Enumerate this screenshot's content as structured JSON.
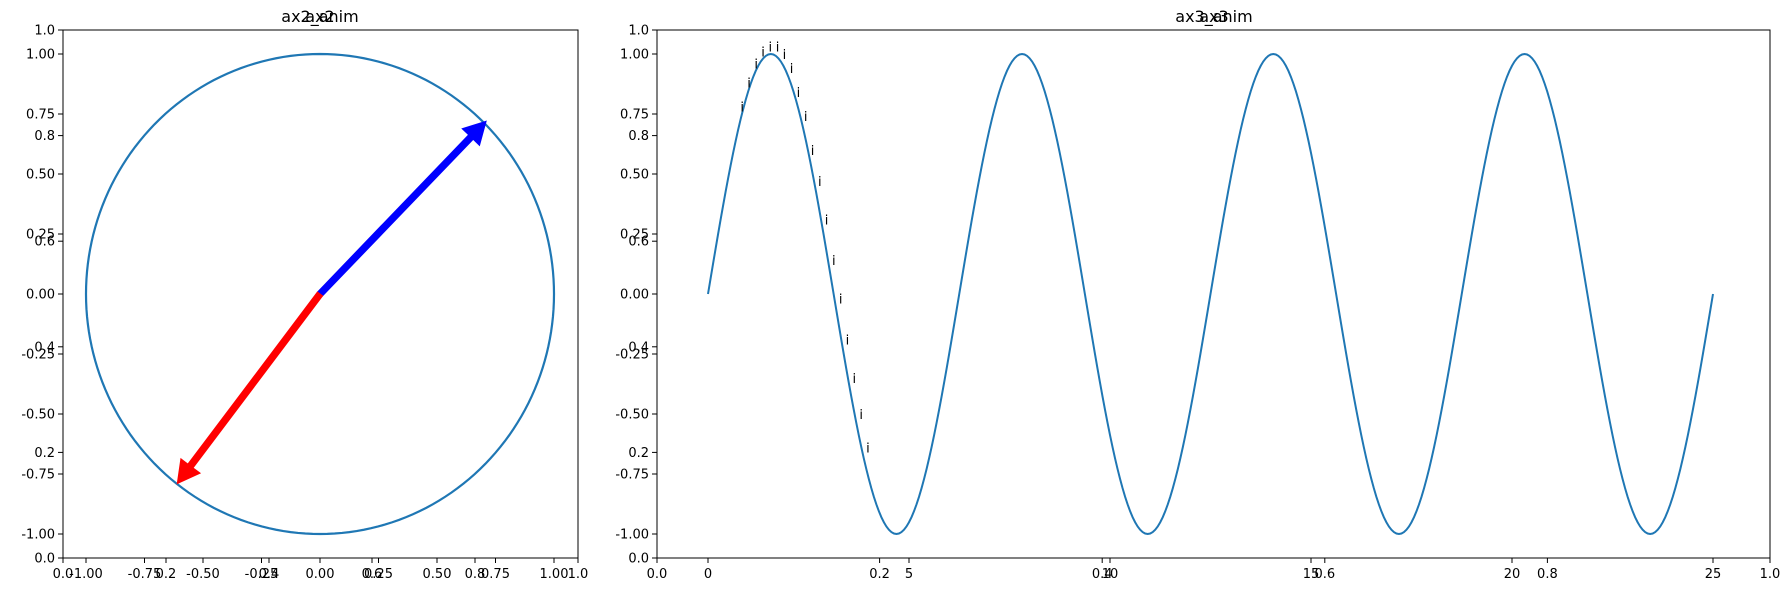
{
  "colors": {
    "line": "#1f77b4",
    "arrow_blue": "#0000ff",
    "arrow_red": "#ff0000",
    "axis": "#000000",
    "background": "#ffffff"
  },
  "chart_data": [
    {
      "type": "line",
      "panel": "left",
      "title": "ax2_anim",
      "overlay_title": "ax2",
      "xlim": [
        -1.0,
        1.0
      ],
      "ylim": [
        -1.0,
        1.0
      ],
      "xticks": [
        "-1.00",
        "-0.75",
        "-0.50",
        "-0.25",
        "0.00",
        "0.25",
        "0.50",
        "0.75",
        "1.00"
      ],
      "yticks": [
        "-1.00",
        "-0.75",
        "-0.50",
        "-0.25",
        "0.00",
        "0.25",
        "0.50",
        "0.75",
        "1.00"
      ],
      "overlay_xticks": [
        "0.0",
        "0.2",
        "0.4",
        "0.6",
        "0.8",
        "1.0"
      ],
      "overlay_yticks": [
        "0.0",
        "0.2",
        "0.4",
        "0.6",
        "0.8",
        "1.0"
      ],
      "series": [
        {
          "kind": "circle",
          "center": [
            0,
            0
          ],
          "radius": 1.0
        }
      ],
      "arrows": [
        {
          "from": [
            0,
            0
          ],
          "to": [
            0.71,
            0.72
          ],
          "color": "blue"
        },
        {
          "from": [
            0,
            0
          ],
          "to": [
            -0.61,
            -0.79
          ],
          "color": "red"
        }
      ],
      "grid": false
    },
    {
      "type": "line",
      "panel": "right",
      "title": "ax3_anim",
      "overlay_title": "ax3",
      "xlim": [
        -1.25,
        26.25
      ],
      "ylim": [
        -1.1,
        1.1
      ],
      "xticks": [
        "0",
        "5",
        "10",
        "15",
        "20",
        "25"
      ],
      "yticks": [
        "-1.00",
        "-0.75",
        "-0.50",
        "-0.25",
        "0.00",
        "0.25",
        "0.50",
        "0.75",
        "1.00"
      ],
      "overlay_xticks": [
        "0.0",
        "0.2",
        "0.4",
        "0.6",
        "0.8",
        "1.0"
      ],
      "overlay_yticks": [
        "0.0",
        "0.2",
        "0.4",
        "0.6",
        "0.8",
        "1.0"
      ],
      "series": [
        {
          "kind": "sine",
          "amplitude": 1.0,
          "cycles": 4,
          "x_start": 0,
          "x_end": 25
        }
      ],
      "annotations": {
        "label": "i",
        "points": [
          [
            0.85,
            0.76
          ],
          [
            1.02,
            0.86
          ],
          [
            1.2,
            0.94
          ],
          [
            1.37,
            0.99
          ],
          [
            1.55,
            1.01
          ],
          [
            1.73,
            1.01
          ],
          [
            1.9,
            0.98
          ],
          [
            2.08,
            0.92
          ],
          [
            2.25,
            0.82
          ],
          [
            2.43,
            0.72
          ],
          [
            2.6,
            0.58
          ],
          [
            2.78,
            0.45
          ],
          [
            2.95,
            0.29
          ],
          [
            3.13,
            0.12
          ],
          [
            3.3,
            -0.04
          ],
          [
            3.47,
            -0.21
          ],
          [
            3.64,
            -0.37
          ],
          [
            3.81,
            -0.52
          ],
          [
            3.98,
            -0.66
          ]
        ]
      },
      "grid": false
    }
  ]
}
